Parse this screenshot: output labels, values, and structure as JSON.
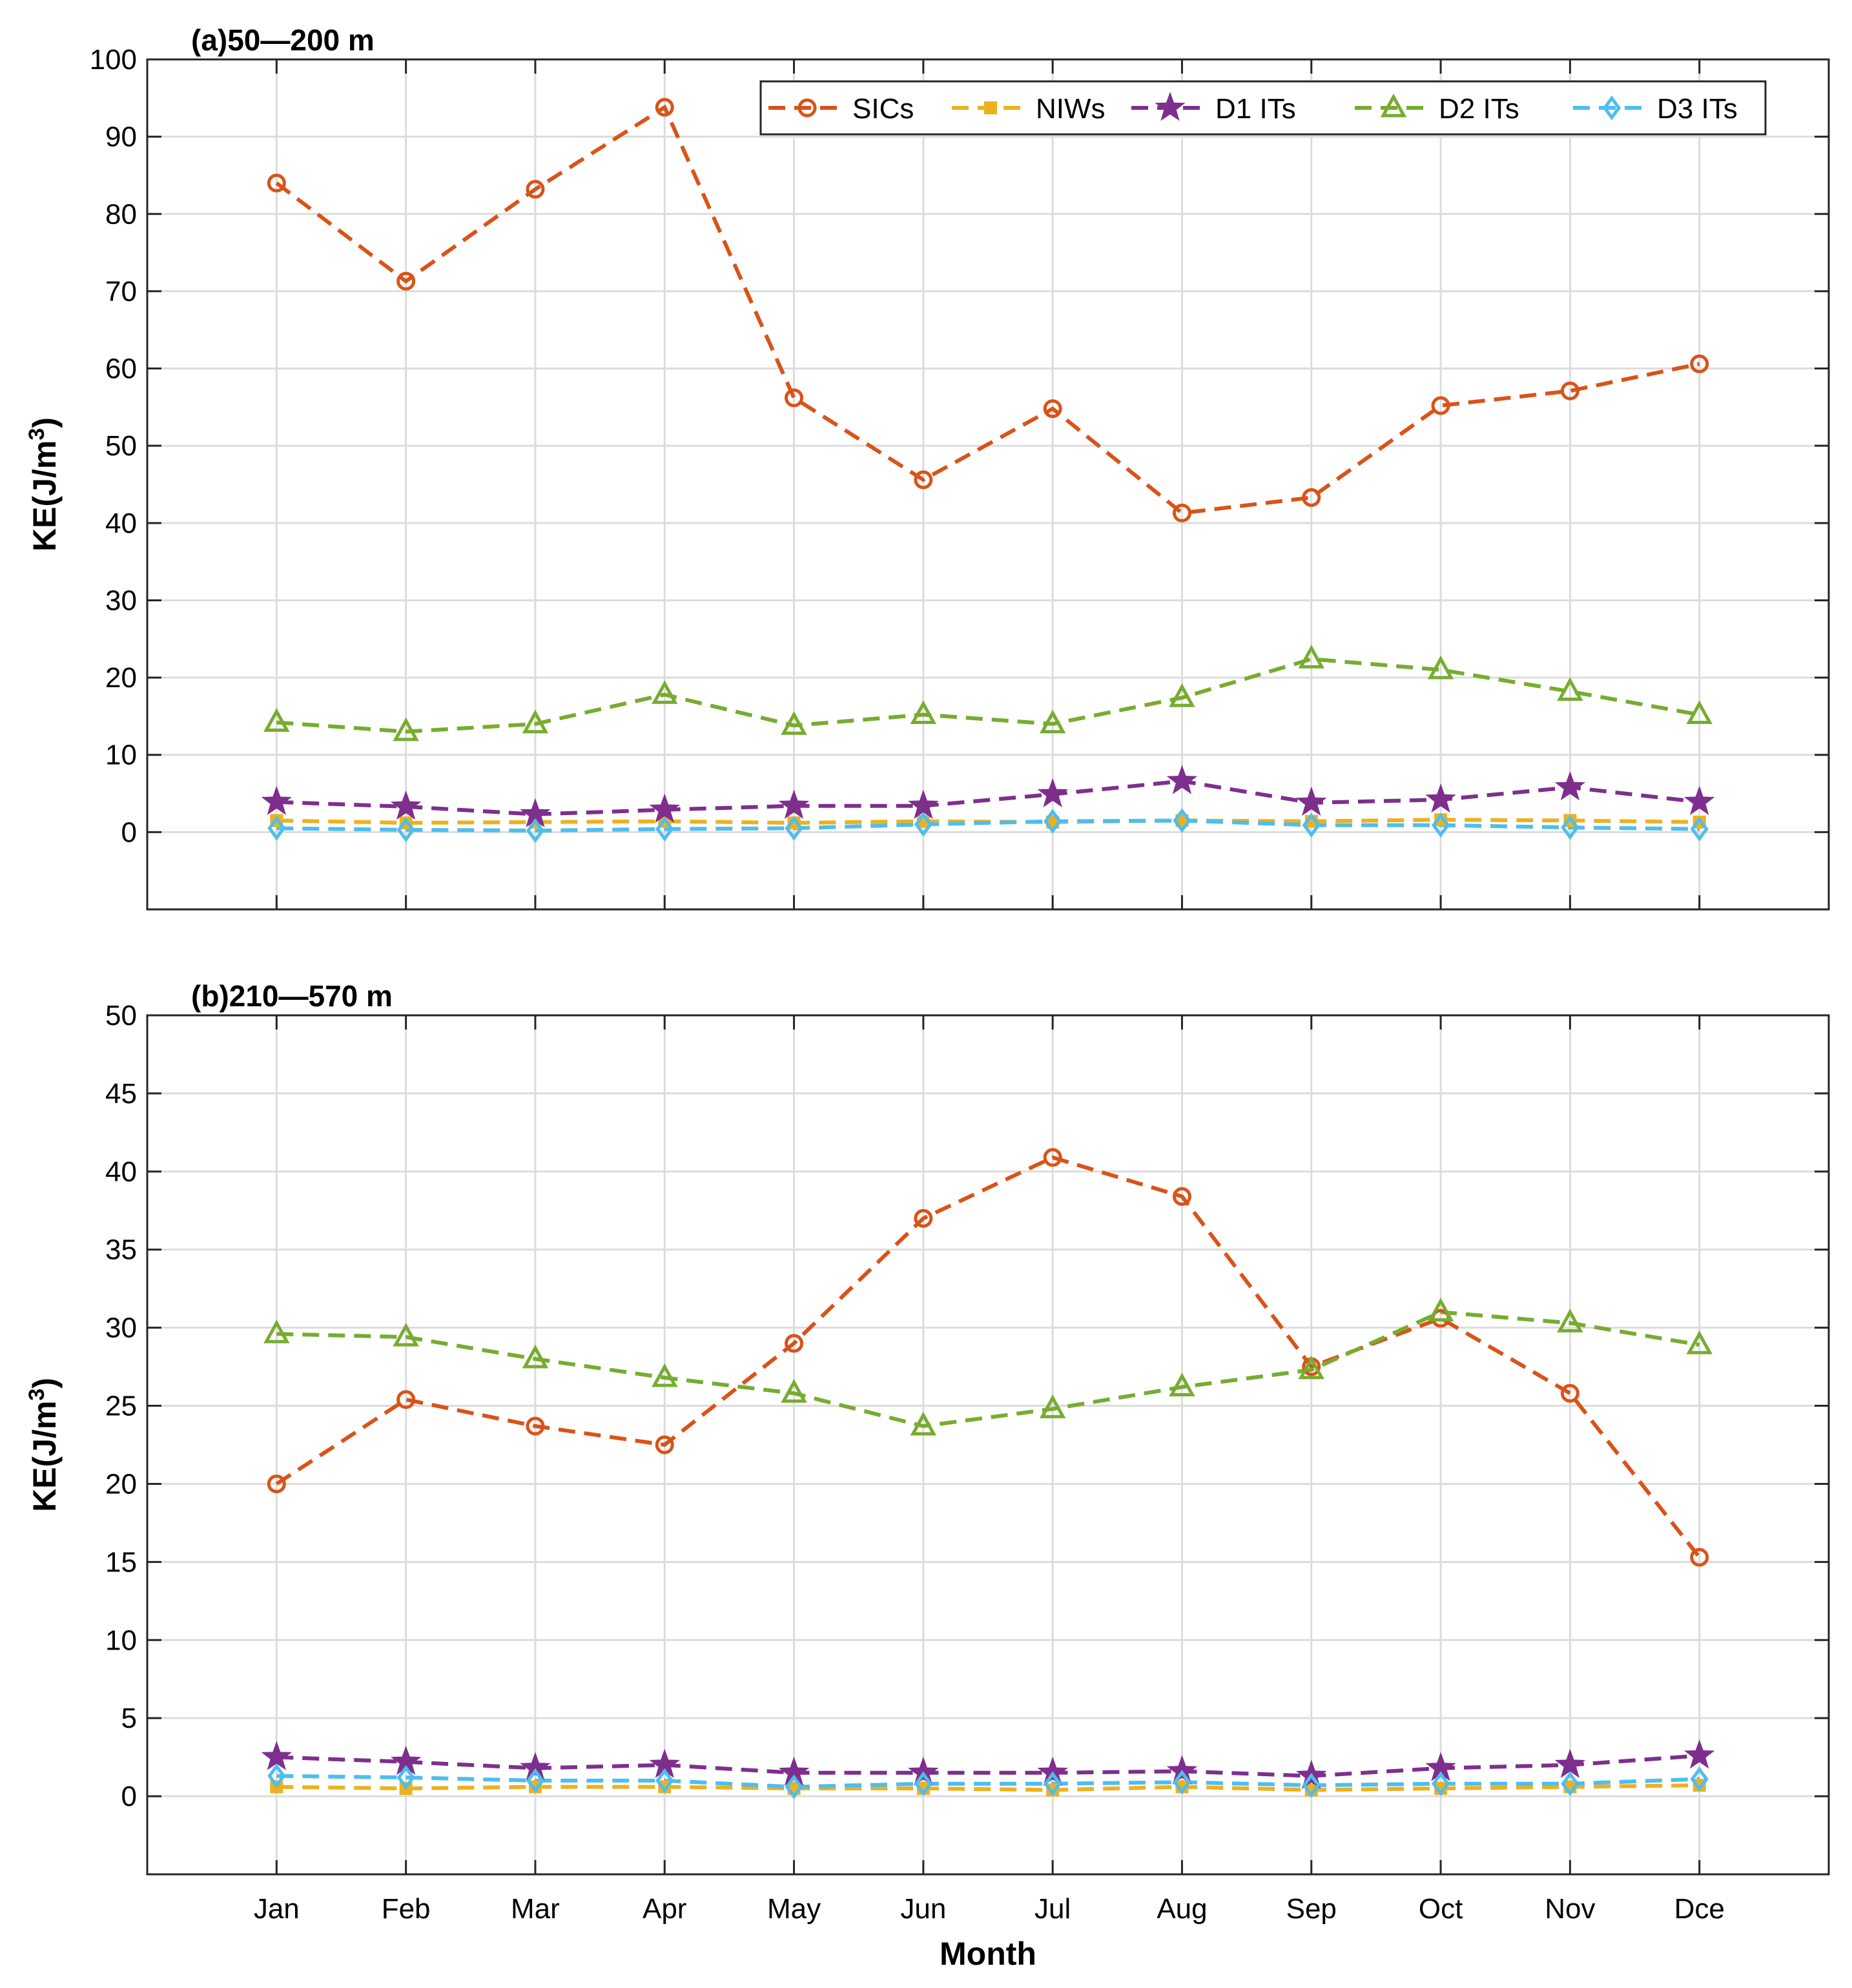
{
  "chart_data": [
    {
      "type": "line",
      "title": "(a)50—200 m",
      "xlabel": "",
      "ylabel": "KE(J/m",
      "ylabel_superscript": "3",
      "ylabel_suffix": ")",
      "categories": [
        "Jan",
        "Feb",
        "Mar",
        "Apr",
        "May",
        "Jun",
        "Jul",
        "Aug",
        "Sep",
        "Oct",
        "Nov",
        "Dce"
      ],
      "ylim": [
        -10,
        100
      ],
      "yticks": [
        0,
        10,
        20,
        30,
        40,
        50,
        60,
        70,
        80,
        90,
        100
      ],
      "grid": true,
      "legend": "top-right",
      "series": [
        {
          "name": "SICs",
          "color": "#D95319",
          "marker": "circle",
          "values": [
            84,
            71.3,
            83.2,
            93.8,
            56.2,
            45.6,
            54.8,
            41.3,
            43.3,
            55.2,
            57.1,
            60.6
          ]
        },
        {
          "name": "NIWs",
          "color": "#EDB120",
          "marker": "square",
          "values": [
            1.5,
            1.2,
            1.3,
            1.4,
            1.2,
            1.4,
            1.3,
            1.5,
            1.4,
            1.6,
            1.5,
            1.3
          ]
        },
        {
          "name": "D1 ITs",
          "color": "#7E2F8E",
          "marker": "star",
          "values": [
            3.9,
            3.3,
            2.3,
            2.9,
            3.4,
            3.4,
            4.9,
            6.6,
            3.8,
            4.2,
            5.8,
            3.9
          ]
        },
        {
          "name": "D2 ITs",
          "color": "#77AC30",
          "marker": "triangle",
          "values": [
            14.2,
            13.0,
            14.0,
            17.8,
            13.8,
            15.2,
            14.0,
            17.4,
            22.4,
            21.0,
            18.2,
            15.2
          ]
        },
        {
          "name": "D3 ITs",
          "color": "#4DBEEE",
          "marker": "diamond",
          "values": [
            0.5,
            0.3,
            0.2,
            0.4,
            0.5,
            1.0,
            1.4,
            1.5,
            0.9,
            0.9,
            0.6,
            0.4
          ]
        }
      ]
    },
    {
      "type": "line",
      "title": "(b)210—570 m",
      "xlabel": "Month",
      "ylabel": "KE(J/m",
      "ylabel_superscript": "3",
      "ylabel_suffix": ")",
      "categories": [
        "Jan",
        "Feb",
        "Mar",
        "Apr",
        "May",
        "Jun",
        "Jul",
        "Aug",
        "Sep",
        "Oct",
        "Nov",
        "Dce"
      ],
      "ylim": [
        -5,
        50
      ],
      "yticks": [
        0,
        5,
        10,
        15,
        20,
        25,
        30,
        35,
        40,
        45,
        50
      ],
      "grid": true,
      "legend": "none",
      "series": [
        {
          "name": "SICs",
          "color": "#D95319",
          "marker": "circle",
          "values": [
            20.0,
            25.4,
            23.7,
            22.5,
            29.0,
            37.0,
            40.9,
            38.4,
            27.5,
            30.6,
            25.8,
            15.3
          ]
        },
        {
          "name": "NIWs",
          "color": "#EDB120",
          "marker": "square",
          "values": [
            0.6,
            0.5,
            0.6,
            0.6,
            0.5,
            0.5,
            0.4,
            0.6,
            0.4,
            0.5,
            0.6,
            0.7
          ]
        },
        {
          "name": "D1 ITs",
          "color": "#7E2F8E",
          "marker": "star",
          "values": [
            2.5,
            2.2,
            1.8,
            2.0,
            1.5,
            1.5,
            1.5,
            1.6,
            1.3,
            1.8,
            2.0,
            2.6
          ]
        },
        {
          "name": "D2 ITs",
          "color": "#77AC30",
          "marker": "triangle",
          "values": [
            29.6,
            29.4,
            28.0,
            26.8,
            25.8,
            23.7,
            24.8,
            26.2,
            27.3,
            31.0,
            30.3,
            28.9
          ]
        },
        {
          "name": "D3 ITs",
          "color": "#4DBEEE",
          "marker": "diamond",
          "values": [
            1.3,
            1.2,
            1.0,
            1.0,
            0.6,
            0.8,
            0.8,
            0.9,
            0.7,
            0.8,
            0.8,
            1.1
          ]
        }
      ]
    }
  ]
}
